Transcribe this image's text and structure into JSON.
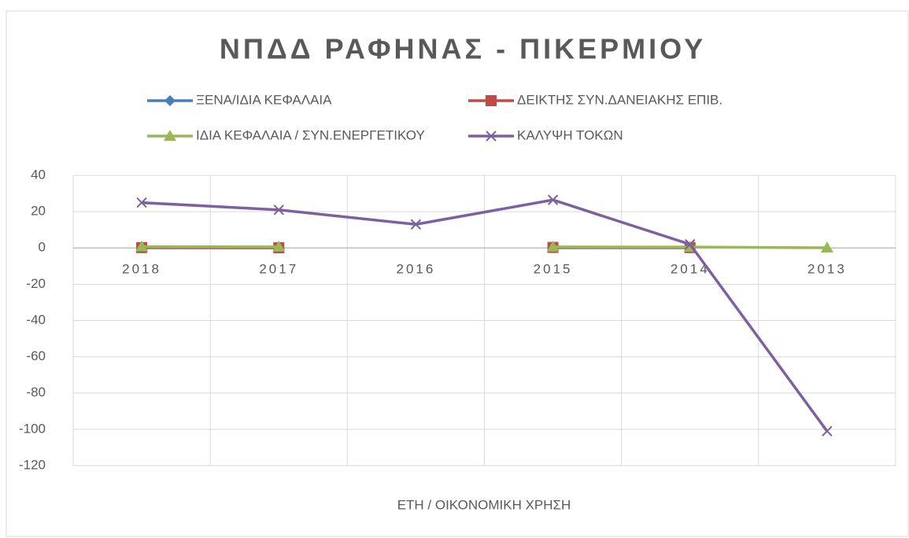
{
  "chart_data": {
    "type": "line",
    "title": "ΝΠΔΔ ΡΑΦΗΝΑΣ - ΠΙΚΕΡΜΙΟΥ",
    "x_label": "ΕΤΗ / ΟΙΚΟΝΟΜΙΚΗ ΧΡΗΣΗ",
    "categories": [
      "2018",
      "2017",
      "2016",
      "2015",
      "2014",
      "2013"
    ],
    "series": [
      {
        "name": "ΞΕΝΑ/ΙΔΙΑ ΚΕΦΑΛΑΙΑ",
        "color": "#4a7ebb",
        "marker": "diamond",
        "values": [
          0.1,
          0.1,
          null,
          0.1,
          0.1,
          null
        ]
      },
      {
        "name": "ΔΕΙΚΤΗΣ ΣΥΝ.ΔΑΝΕΙΑΚΗΣ ΕΠΙΒ.",
        "color": "#be4b48",
        "marker": "square",
        "values": [
          0.2,
          0.1,
          null,
          0.3,
          0.2,
          null
        ]
      },
      {
        "name": "ΙΔΙΑ ΚΕΦΑΛΑΙΑ / ΣΥΝ.ΕΝΕΡΓΕΤΙΚΟΥ",
        "color": "#98b954",
        "marker": "triangle",
        "values": [
          0.7,
          0.6,
          null,
          0.6,
          0.5,
          0.1
        ]
      },
      {
        "name": "ΚΑΛΥΨΗ ΤΟΚΩΝ",
        "color": "#7d60a0",
        "marker": "x",
        "values": [
          25,
          21,
          13,
          26.5,
          2,
          -101
        ]
      }
    ],
    "ylim": [
      -120,
      40
    ],
    "yticks": [
      -120,
      -100,
      -80,
      -60,
      -40,
      -20,
      0,
      20,
      40
    ],
    "grid": true
  }
}
